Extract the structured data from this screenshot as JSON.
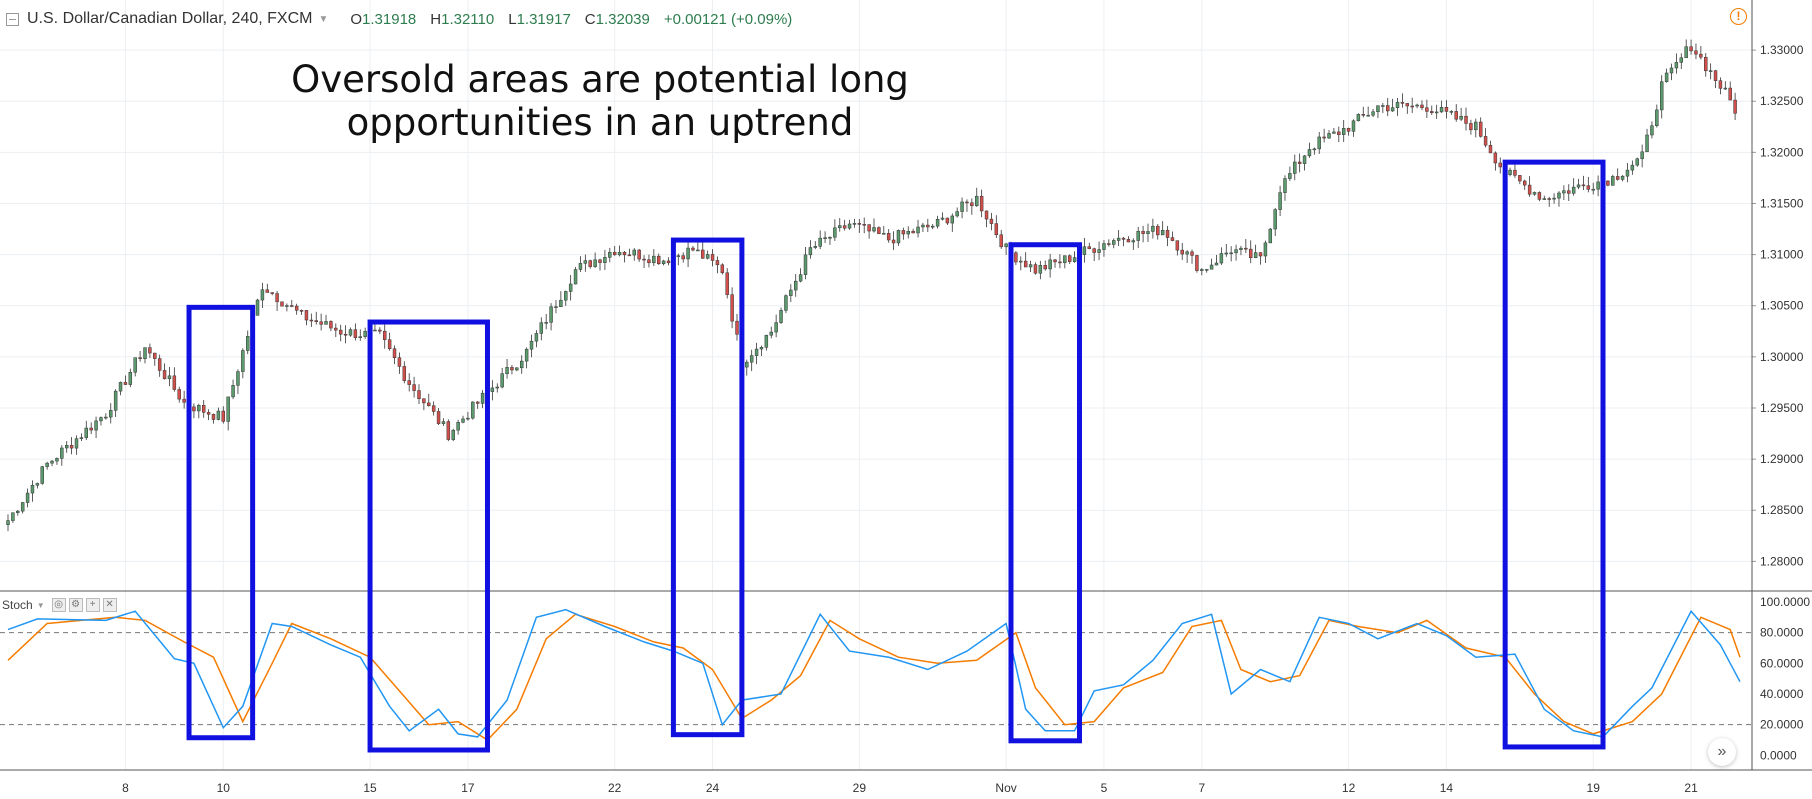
{
  "header": {
    "symbol": "U.S. Dollar/Canadian Dollar, 240, FXCM",
    "ohlc": [
      {
        "k": "O",
        "v": "1.31918"
      },
      {
        "k": "H",
        "v": "1.32110"
      },
      {
        "k": "L",
        "v": "1.31917"
      },
      {
        "k": "C",
        "v": "1.32039"
      }
    ],
    "change": "+0.00121 (+0.09%)",
    "alert_icon": "!"
  },
  "annotation": {
    "line1": "Oversold areas are potential long",
    "line2": "opportunities in an uptrend",
    "color": "#1010e0"
  },
  "indicator": {
    "label": "Stoch"
  },
  "colors": {
    "up": "#5b9a6d",
    "down": "#d2504b",
    "k": "#2196f3",
    "d": "#f57c00",
    "box": "#1010e0"
  },
  "chart_data": [
    {
      "type": "candlestick",
      "title": "",
      "y_ticks": [
        "1.33000",
        "1.32500",
        "1.32000",
        "1.31500",
        "1.31000",
        "1.30500",
        "1.30000",
        "1.29500",
        "1.29000",
        "1.28500",
        "1.28000"
      ],
      "ylim": [
        1.2772,
        1.3349
      ],
      "x_ticks": [
        {
          "label": "8",
          "idx": 24
        },
        {
          "label": "10",
          "idx": 44
        },
        {
          "label": "15",
          "idx": 74
        },
        {
          "label": "17",
          "idx": 94
        },
        {
          "label": "22",
          "idx": 124
        },
        {
          "label": "24",
          "idx": 144
        },
        {
          "label": "29",
          "idx": 174
        },
        {
          "label": "Nov",
          "idx": 204
        },
        {
          "label": "5",
          "idx": 224
        },
        {
          "label": "7",
          "idx": 244
        },
        {
          "label": "12",
          "idx": 274
        },
        {
          "label": "14",
          "idx": 294
        },
        {
          "label": "19",
          "idx": 324
        },
        {
          "label": "21",
          "idx": 344
        }
      ],
      "n_bars": 354,
      "keypoints": [
        [
          0,
          1.284
        ],
        [
          8,
          1.2895
        ],
        [
          20,
          1.2945
        ],
        [
          28,
          1.301
        ],
        [
          36,
          1.2955
        ],
        [
          44,
          1.294
        ],
        [
          52,
          1.307
        ],
        [
          60,
          1.304
        ],
        [
          68,
          1.3025
        ],
        [
          76,
          1.302
        ],
        [
          82,
          1.2975
        ],
        [
          90,
          1.2925
        ],
        [
          98,
          1.2965
        ],
        [
          106,
          1.3005
        ],
        [
          116,
          1.3085
        ],
        [
          124,
          1.3105
        ],
        [
          134,
          1.3095
        ],
        [
          140,
          1.3105
        ],
        [
          146,
          1.3085
        ],
        [
          150,
          1.2995
        ],
        [
          156,
          1.3025
        ],
        [
          164,
          1.3105
        ],
        [
          172,
          1.313
        ],
        [
          180,
          1.3115
        ],
        [
          190,
          1.313
        ],
        [
          198,
          1.3155
        ],
        [
          204,
          1.3105
        ],
        [
          210,
          1.3085
        ],
        [
          216,
          1.3095
        ],
        [
          226,
          1.3115
        ],
        [
          236,
          1.3125
        ],
        [
          244,
          1.3085
        ],
        [
          250,
          1.3105
        ],
        [
          256,
          1.3095
        ],
        [
          260,
          1.3165
        ],
        [
          266,
          1.3205
        ],
        [
          274,
          1.3225
        ],
        [
          280,
          1.3245
        ],
        [
          290,
          1.3245
        ],
        [
          300,
          1.3225
        ],
        [
          306,
          1.318
        ],
        [
          314,
          1.3155
        ],
        [
          320,
          1.3165
        ],
        [
          328,
          1.3175
        ],
        [
          334,
          1.3195
        ],
        [
          338,
          1.3265
        ],
        [
          344,
          1.3305
        ],
        [
          350,
          1.3265
        ],
        [
          354,
          1.3235
        ]
      ],
      "stochastic": {
        "ylim": [
          10,
          100
        ],
        "y_ticks": [
          "100.0000",
          "80.0000",
          "60.0000",
          "40.0000",
          "20.0000",
          "0.0000"
        ],
        "levels": [
          80,
          20
        ],
        "k_points": [
          [
            0,
            82
          ],
          [
            6,
            89
          ],
          [
            20,
            88
          ],
          [
            26,
            94
          ],
          [
            34,
            63
          ],
          [
            38,
            60
          ],
          [
            44,
            18
          ],
          [
            48,
            32
          ],
          [
            54,
            86
          ],
          [
            58,
            84
          ],
          [
            66,
            72
          ],
          [
            72,
            64
          ],
          [
            78,
            32
          ],
          [
            82,
            16
          ],
          [
            88,
            30
          ],
          [
            92,
            14
          ],
          [
            96,
            12
          ],
          [
            102,
            36
          ],
          [
            108,
            90
          ],
          [
            114,
            95
          ],
          [
            122,
            84
          ],
          [
            130,
            74
          ],
          [
            136,
            68
          ],
          [
            142,
            60
          ],
          [
            146,
            20
          ],
          [
            150,
            36
          ],
          [
            158,
            40
          ],
          [
            166,
            92
          ],
          [
            172,
            68
          ],
          [
            180,
            64
          ],
          [
            188,
            56
          ],
          [
            196,
            68
          ],
          [
            204,
            86
          ],
          [
            208,
            30
          ],
          [
            212,
            16
          ],
          [
            218,
            16
          ],
          [
            222,
            42
          ],
          [
            228,
            46
          ],
          [
            234,
            62
          ],
          [
            240,
            86
          ],
          [
            246,
            92
          ],
          [
            250,
            40
          ],
          [
            256,
            56
          ],
          [
            262,
            48
          ],
          [
            268,
            90
          ],
          [
            274,
            86
          ],
          [
            280,
            76
          ],
          [
            288,
            86
          ],
          [
            294,
            78
          ],
          [
            300,
            64
          ],
          [
            308,
            66
          ],
          [
            314,
            30
          ],
          [
            320,
            16
          ],
          [
            326,
            12
          ],
          [
            332,
            32
          ],
          [
            336,
            44
          ],
          [
            344,
            94
          ],
          [
            350,
            72
          ],
          [
            354,
            48
          ]
        ],
        "d_points": [
          [
            0,
            62
          ],
          [
            8,
            86
          ],
          [
            22,
            90
          ],
          [
            28,
            88
          ],
          [
            36,
            74
          ],
          [
            42,
            64
          ],
          [
            48,
            22
          ],
          [
            54,
            60
          ],
          [
            58,
            86
          ],
          [
            66,
            76
          ],
          [
            74,
            64
          ],
          [
            80,
            42
          ],
          [
            86,
            20
          ],
          [
            92,
            22
          ],
          [
            98,
            10
          ],
          [
            104,
            30
          ],
          [
            110,
            76
          ],
          [
            116,
            92
          ],
          [
            124,
            84
          ],
          [
            132,
            74
          ],
          [
            138,
            70
          ],
          [
            144,
            56
          ],
          [
            150,
            24
          ],
          [
            156,
            36
          ],
          [
            162,
            52
          ],
          [
            168,
            88
          ],
          [
            174,
            76
          ],
          [
            182,
            64
          ],
          [
            190,
            60
          ],
          [
            198,
            62
          ],
          [
            206,
            80
          ],
          [
            210,
            44
          ],
          [
            216,
            20
          ],
          [
            222,
            22
          ],
          [
            228,
            44
          ],
          [
            236,
            54
          ],
          [
            242,
            84
          ],
          [
            248,
            88
          ],
          [
            252,
            56
          ],
          [
            258,
            48
          ],
          [
            264,
            52
          ],
          [
            270,
            88
          ],
          [
            276,
            84
          ],
          [
            284,
            80
          ],
          [
            290,
            88
          ],
          [
            298,
            70
          ],
          [
            306,
            64
          ],
          [
            312,
            40
          ],
          [
            318,
            22
          ],
          [
            324,
            14
          ],
          [
            332,
            22
          ],
          [
            338,
            40
          ],
          [
            346,
            90
          ],
          [
            352,
            82
          ],
          [
            354,
            64
          ]
        ]
      },
      "oversold_boxes": [
        {
          "from_idx": 37,
          "to_idx": 50
        },
        {
          "from_idx": 74,
          "to_idx": 98
        },
        {
          "from_idx": 136,
          "to_idx": 150
        },
        {
          "from_idx": 205,
          "to_idx": 219
        },
        {
          "from_idx": 306,
          "to_idx": 326
        }
      ]
    }
  ]
}
